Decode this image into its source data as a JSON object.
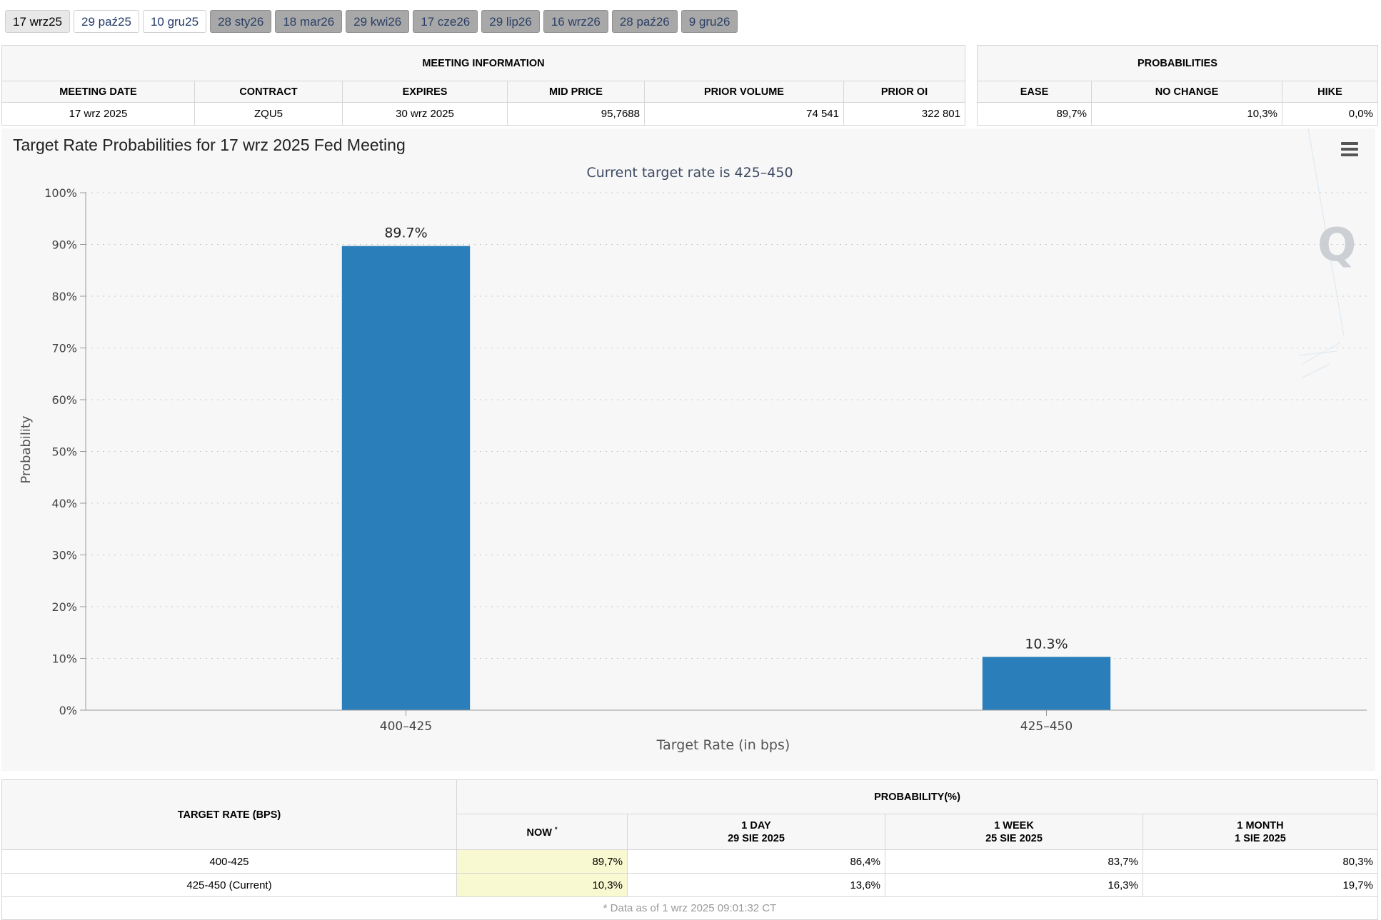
{
  "tabs": [
    {
      "label": "17 wrz25",
      "state": "active"
    },
    {
      "label": "29 paź25",
      "state": "light"
    },
    {
      "label": "10 gru25",
      "state": "light"
    },
    {
      "label": "28 sty26",
      "state": "gray"
    },
    {
      "label": "18 mar26",
      "state": "gray"
    },
    {
      "label": "29 kwi26",
      "state": "gray"
    },
    {
      "label": "17 cze26",
      "state": "gray"
    },
    {
      "label": "29 lip26",
      "state": "gray"
    },
    {
      "label": "16 wrz26",
      "state": "gray"
    },
    {
      "label": "28 paź26",
      "state": "gray"
    },
    {
      "label": "9 gru26",
      "state": "gray"
    }
  ],
  "meeting_info": {
    "header": "MEETING INFORMATION",
    "columns": [
      "MEETING DATE",
      "CONTRACT",
      "EXPIRES",
      "MID PRICE",
      "PRIOR VOLUME",
      "PRIOR OI"
    ],
    "row": [
      "17 wrz 2025",
      "ZQU5",
      "30 wrz 2025",
      "95,7688",
      "74 541",
      "322 801"
    ]
  },
  "probabilities": {
    "header": "PROBABILITIES",
    "columns": [
      "EASE",
      "NO CHANGE",
      "HIKE"
    ],
    "row": [
      "89,7%",
      "10,3%",
      "0,0%"
    ]
  },
  "chart_title": "Target Rate Probabilities for 17 wrz 2025 Fed Meeting",
  "chart_data": {
    "type": "bar",
    "subtitle": "Current target rate is 425–450",
    "categories": [
      "400–425",
      "425–450"
    ],
    "values": [
      89.7,
      10.3
    ],
    "data_labels": [
      "89.7%",
      "10.3%"
    ],
    "xlabel": "Target Rate (in bps)",
    "ylabel": "Probability",
    "ylim": [
      0,
      100
    ],
    "yticks": [
      "0%",
      "10%",
      "20%",
      "30%",
      "40%",
      "50%",
      "60%",
      "70%",
      "80%",
      "90%",
      "100%"
    ],
    "grid": true,
    "bar_color": "#2a7fba"
  },
  "bottom_table": {
    "col_target": "TARGET RATE (BPS)",
    "col_prob": "PROBABILITY(%)",
    "sub_now": "NOW",
    "now_marker": "*",
    "sub_cols": [
      {
        "line1": "1 DAY",
        "line2": "29 SIE 2025"
      },
      {
        "line1": "1 WEEK",
        "line2": "25 SIE 2025"
      },
      {
        "line1": "1 MONTH",
        "line2": "1 SIE 2025"
      }
    ],
    "rows": [
      {
        "rate": "400-425",
        "now": "89,7%",
        "d1": "86,4%",
        "w1": "83,7%",
        "m1": "80,3%"
      },
      {
        "rate": "425-450 (Current)",
        "now": "10,3%",
        "d1": "13,6%",
        "w1": "16,3%",
        "m1": "19,7%"
      }
    ],
    "footnote": "* Data as of 1 wrz 2025 09:01:32 CT"
  }
}
